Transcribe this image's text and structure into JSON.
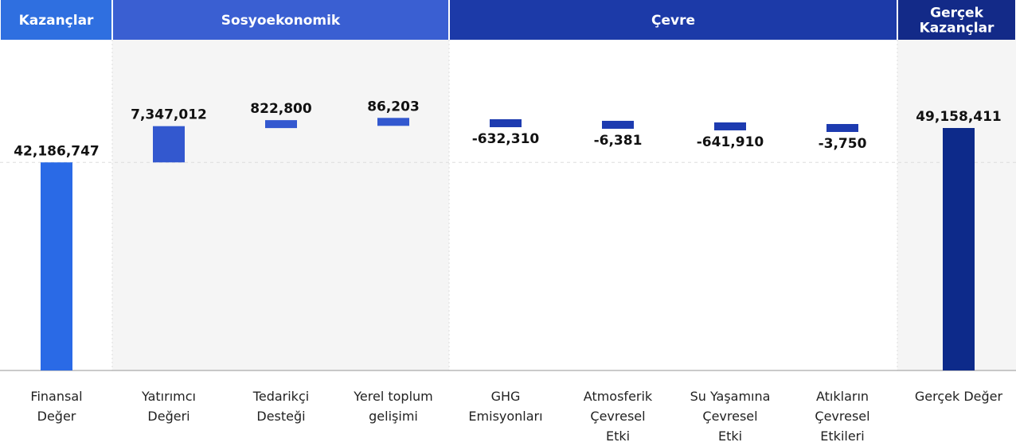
{
  "chart_data": {
    "type": "bar",
    "subtype": "waterfall",
    "groups": [
      {
        "label": "Kazançlar",
        "color": "#2f6fe0",
        "categories": [
          0
        ]
      },
      {
        "label": "Sosyoekonomik",
        "color": "#3a5fd2",
        "categories": [
          1,
          2,
          3
        ]
      },
      {
        "label": "Çevre",
        "color": "#1c3aa8",
        "categories": [
          4,
          5,
          6,
          7
        ]
      },
      {
        "label": "Gerçek\nKazançlar",
        "color": "#132a88",
        "categories": [
          8
        ]
      }
    ],
    "categories": [
      "Finansal\nDeğer",
      "Yatırımcı\nDeğeri",
      "Tedarikçi\nDesteği",
      "Yerel toplum\ngelişimi",
      "GHG\nEmisyonları",
      "Atmosferik\nÇevresel\nEtki",
      "Su Yaşamına\nÇevresel\nEtki",
      "Atıkların\nÇevresel\nEtkileri",
      "Gerçek Değer"
    ],
    "values": [
      42186747,
      7347012,
      822800,
      86203,
      -632310,
      -6381,
      -641910,
      -3750,
      49158411
    ],
    "value_labels": [
      "42,186,747",
      "7,347,012",
      "822,800",
      "86,203",
      "-632,310",
      "-6,381",
      "-641,910",
      "-3,750",
      "49,158,411"
    ],
    "measure": [
      "absolute",
      "relative",
      "relative",
      "relative",
      "relative",
      "relative",
      "relative",
      "relative",
      "total"
    ],
    "bar_colors": [
      "#2a6ae6",
      "#3358cf",
      "#3358cf",
      "#3358cf",
      "#1d3bb0",
      "#1d3bb0",
      "#1d3bb0",
      "#1d3bb0",
      "#0d2a8a"
    ],
    "grid": false
  }
}
